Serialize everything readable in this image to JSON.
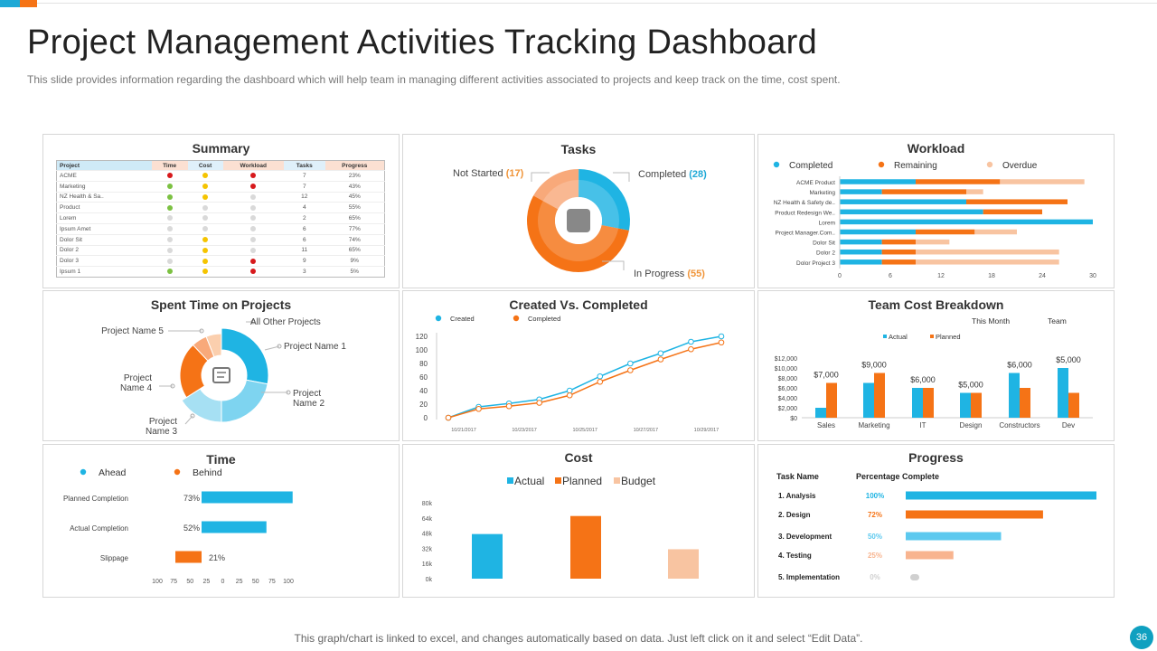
{
  "header": {
    "title": "Project Management Activities Tracking Dashboard",
    "subtitle": "This slide provides  information regarding  the dashboard which will help team in managing different  activities associated to projects and keep track on the time, cost spent."
  },
  "footer": {
    "note": "This graph/chart is linked to excel,  and changes automatically based on data. Just left click on it and select “Edit Data”.",
    "page_number": "36"
  },
  "colors": {
    "blue": "#1fb4e3",
    "orange": "#f57316",
    "peach": "#f8c4a1",
    "lightblue": "#7ed4f0",
    "green": "#7cc142",
    "yellow": "#f5c400",
    "red": "#d7191c",
    "grey": "#d9d9d9"
  },
  "summary": {
    "title": "Summary",
    "columns": [
      "Project",
      "Time",
      "Cost",
      "Workload",
      "Tasks",
      "Progress"
    ],
    "rows": [
      {
        "project": "ACME",
        "time": "red",
        "cost": "yellow",
        "workload": "red",
        "tasks": "7",
        "progress": "23%"
      },
      {
        "project": "Marketing",
        "time": "green",
        "cost": "yellow",
        "workload": "red",
        "tasks": "7",
        "progress": "43%"
      },
      {
        "project": "NZ Health & Sa..",
        "time": "green",
        "cost": "yellow",
        "workload": "grey",
        "tasks": "12",
        "progress": "45%"
      },
      {
        "project": "Product",
        "time": "green",
        "cost": "grey",
        "workload": "grey",
        "tasks": "4",
        "progress": "55%"
      },
      {
        "project": "Lorem",
        "time": "grey",
        "cost": "grey",
        "workload": "grey",
        "tasks": "2",
        "progress": "65%"
      },
      {
        "project": "Ipsum Amet",
        "time": "grey",
        "cost": "grey",
        "workload": "grey",
        "tasks": "6",
        "progress": "77%"
      },
      {
        "project": "Dolor Sit",
        "time": "grey",
        "cost": "yellow",
        "workload": "grey",
        "tasks": "6",
        "progress": "74%"
      },
      {
        "project": "Dolor 2",
        "time": "grey",
        "cost": "yellow",
        "workload": "grey",
        "tasks": "11",
        "progress": "65%"
      },
      {
        "project": "Dolor 3",
        "time": "grey",
        "cost": "yellow",
        "workload": "red",
        "tasks": "9",
        "progress": "9%"
      },
      {
        "project": "Ipsum 1",
        "time": "green",
        "cost": "yellow",
        "workload": "red",
        "tasks": "3",
        "progress": "5%"
      }
    ]
  },
  "chart_data": [
    {
      "type": "pie",
      "title": "Tasks",
      "labels": [
        "Not Started",
        "Completed",
        "In Progress"
      ],
      "values": [
        17,
        28,
        55
      ],
      "colors": [
        "#f8a97a",
        "#1fb4e3",
        "#f57316"
      ]
    },
    {
      "type": "bar",
      "orientation": "horizontal",
      "stacked": true,
      "title": "Workload",
      "categories": [
        "ACME Product",
        "Marketing",
        "NZ Health & Safety de..",
        "Product Redesign We..",
        "Lorem",
        "Project Manager.Com..",
        "Dolor Sit",
        "Dolor 2",
        "Dolor Project 3"
      ],
      "series": [
        {
          "name": "Completed",
          "values": [
            9,
            5,
            15,
            17,
            30,
            9,
            5,
            5,
            5
          ]
        },
        {
          "name": "Remaining",
          "values": [
            10,
            10,
            12,
            7,
            0,
            7,
            4,
            4,
            4
          ]
        },
        {
          "name": "Overdue",
          "values": [
            10,
            2,
            0,
            0,
            0,
            5,
            4,
            17,
            17
          ]
        }
      ],
      "xticks": [
        "0",
        "6",
        "12",
        "18",
        "24",
        "30"
      ],
      "xlim": [
        0,
        30
      ],
      "legend": "top"
    },
    {
      "type": "pie",
      "title": "Spent Time on Projects",
      "labels": [
        "Project Name 1",
        "Project Name 2",
        "Project Name 3",
        "Project Name 4",
        "Project Name 5",
        "All Other Projects"
      ],
      "values": [
        28,
        22,
        16,
        22,
        6,
        6
      ],
      "colors": [
        "#1fb4e3",
        "#7ed4f0",
        "#a6e0f3",
        "#f57316",
        "#f8a97a",
        "#fbcfae"
      ]
    },
    {
      "type": "line",
      "title": "Created Vs. Completed",
      "x": [
        "10/21/2017",
        "",
        "10/23/2017",
        "",
        "10/25/2017",
        "",
        "10/27/2017",
        "",
        "10/29/2017",
        ""
      ],
      "series": [
        {
          "name": "Created",
          "values": [
            0,
            16,
            21,
            27,
            40,
            61,
            80,
            95,
            112,
            120
          ]
        },
        {
          "name": "Completed",
          "values": [
            0,
            13,
            17,
            22,
            33,
            53,
            70,
            86,
            101,
            111
          ]
        }
      ],
      "yticks": [
        "0",
        "20",
        "40",
        "60",
        "80",
        "100",
        "120"
      ],
      "ylim": [
        0,
        120
      ],
      "legend": "top-left"
    },
    {
      "type": "bar",
      "title": "Team Cost Breakdown",
      "subtitle_left": "This Month",
      "subtitle_right": "Team",
      "categories": [
        "Sales",
        "Marketing",
        "IT",
        "Design",
        "Constructors",
        "Dev"
      ],
      "series": [
        {
          "name": "Actual",
          "values": [
            2000,
            7000,
            6000,
            5000,
            9000,
            10000
          ]
        },
        {
          "name": "Planned",
          "values": [
            7000,
            9000,
            6000,
            5000,
            6000,
            5000
          ]
        }
      ],
      "data_labels": [
        "$7,000",
        "$9,000",
        "$6,000",
        "$5,000",
        "$6,000",
        "$5,000"
      ],
      "yticks": [
        "$0",
        "$2,000",
        "$4,000",
        "$6,000",
        "$8,000",
        "$10,000",
        "$12,000"
      ],
      "ylim": [
        0,
        12000
      ]
    },
    {
      "type": "bar",
      "orientation": "horizontal",
      "title": "Time",
      "categories": [
        "Planned Completion",
        "Actual Completion",
        "Slippage"
      ],
      "values": [
        73,
        52,
        -21
      ],
      "labels": [
        "73%",
        "52%",
        "21%"
      ],
      "series_names": [
        "Ahead",
        "Behind"
      ],
      "xticks": [
        "100",
        "75",
        "50",
        "25",
        "0",
        "25",
        "50",
        "75",
        "100"
      ],
      "xlim": [
        -100,
        100
      ]
    },
    {
      "type": "bar",
      "title": "Cost",
      "categories": [
        "Actual",
        "Planned",
        "Budget"
      ],
      "values": [
        47,
        66,
        31
      ],
      "yticks": [
        "0k",
        "16k",
        "32k",
        "48k",
        "64k",
        "80k"
      ],
      "ylim": [
        0,
        80
      ]
    },
    {
      "type": "bar",
      "orientation": "horizontal",
      "title": "Progress",
      "columns": [
        "Task Name",
        "Percentage Complete"
      ],
      "categories": [
        "1. Analysis",
        "2. Design",
        "3. Development",
        "4. Testing",
        "5. Implementation"
      ],
      "values": [
        100,
        72,
        50,
        25,
        0
      ],
      "labels": [
        "100%",
        "72%",
        "50%",
        "25%",
        "0%"
      ],
      "colors": [
        "#1fb4e3",
        "#f57316",
        "#5cc9ef",
        "#f8b48f",
        "#d0d0d0"
      ]
    }
  ]
}
